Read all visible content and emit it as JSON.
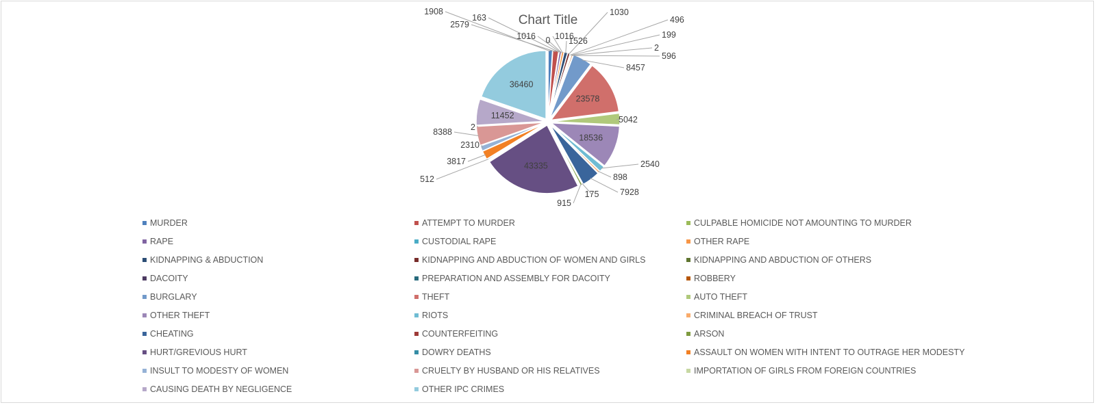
{
  "chart_data": {
    "type": "pie",
    "title": "Chart Title",
    "legend_position": "bottom",
    "categories": [
      "MURDER",
      "ATTEMPT TO MURDER",
      "CULPABLE HOMICIDE NOT AMOUNTING TO MURDER",
      "RAPE",
      "CUSTODIAL RAPE",
      "OTHER RAPE",
      "KIDNAPPING & ABDUCTION",
      "KIDNAPPING AND ABDUCTION OF WOMEN AND GIRLS",
      "KIDNAPPING AND ABDUCTION OF OTHERS",
      "DACOITY",
      "PREPARATION AND ASSEMBLY FOR DACOITY",
      "ROBBERY",
      "BURGLARY",
      "THEFT",
      "AUTO THEFT",
      "OTHER THEFT",
      "RIOTS",
      "CRIMINAL BREACH OF TRUST",
      "CHEATING",
      "COUNTERFEITING",
      "ARSON",
      "HURT/GREVIOUS HURT",
      "DOWRY DEATHS",
      "ASSAULT ON WOMEN WITH INTENT TO OUTRAGE HER MODESTY",
      "INSULT TO MODESTY OF WOMEN",
      "CRUELTY BY HUSBAND OR HIS RELATIVES",
      "IMPORTATION OF GIRLS FROM FOREIGN COUNTRIES",
      "CAUSING DEATH BY NEGLIGENCE",
      "OTHER IPC CRIMES"
    ],
    "values": [
      1908,
      2579,
      163,
      1016,
      0,
      1016,
      1526,
      1030,
      496,
      199,
      2,
      596,
      8457,
      23578,
      5042,
      18536,
      2540,
      898,
      7928,
      175,
      915,
      43335,
      512,
      3817,
      2310,
      8388,
      2,
      11452,
      36460
    ],
    "data_labels": [
      "1908",
      "2579",
      "163",
      "1016",
      "0",
      "1016",
      "1526",
      "1030",
      "496",
      "199",
      "2",
      "596",
      "8457",
      "23578",
      "5042",
      "18536",
      "2540",
      "898",
      "7928",
      "175",
      "915",
      "43335",
      "512",
      "3817",
      "2310",
      "8388",
      "2",
      "11452",
      "36460"
    ],
    "colors": [
      "#4f81bd",
      "#c0504d",
      "#9bbb59",
      "#8064a2",
      "#4bacc6",
      "#f79646",
      "#2c4d75",
      "#772c2a",
      "#5f7530",
      "#4d3b62",
      "#276a7c",
      "#b65708",
      "#729aca",
      "#d06f6b",
      "#b0c97b",
      "#9c87b7",
      "#6fbcd3",
      "#f9ab6b",
      "#3a659b",
      "#9e3b38",
      "#7f9b40",
      "#664f83",
      "#358da5",
      "#f28024",
      "#95b2d6",
      "#d99795",
      "#c7d8a3",
      "#b6a8c9",
      "#93cbde"
    ]
  }
}
